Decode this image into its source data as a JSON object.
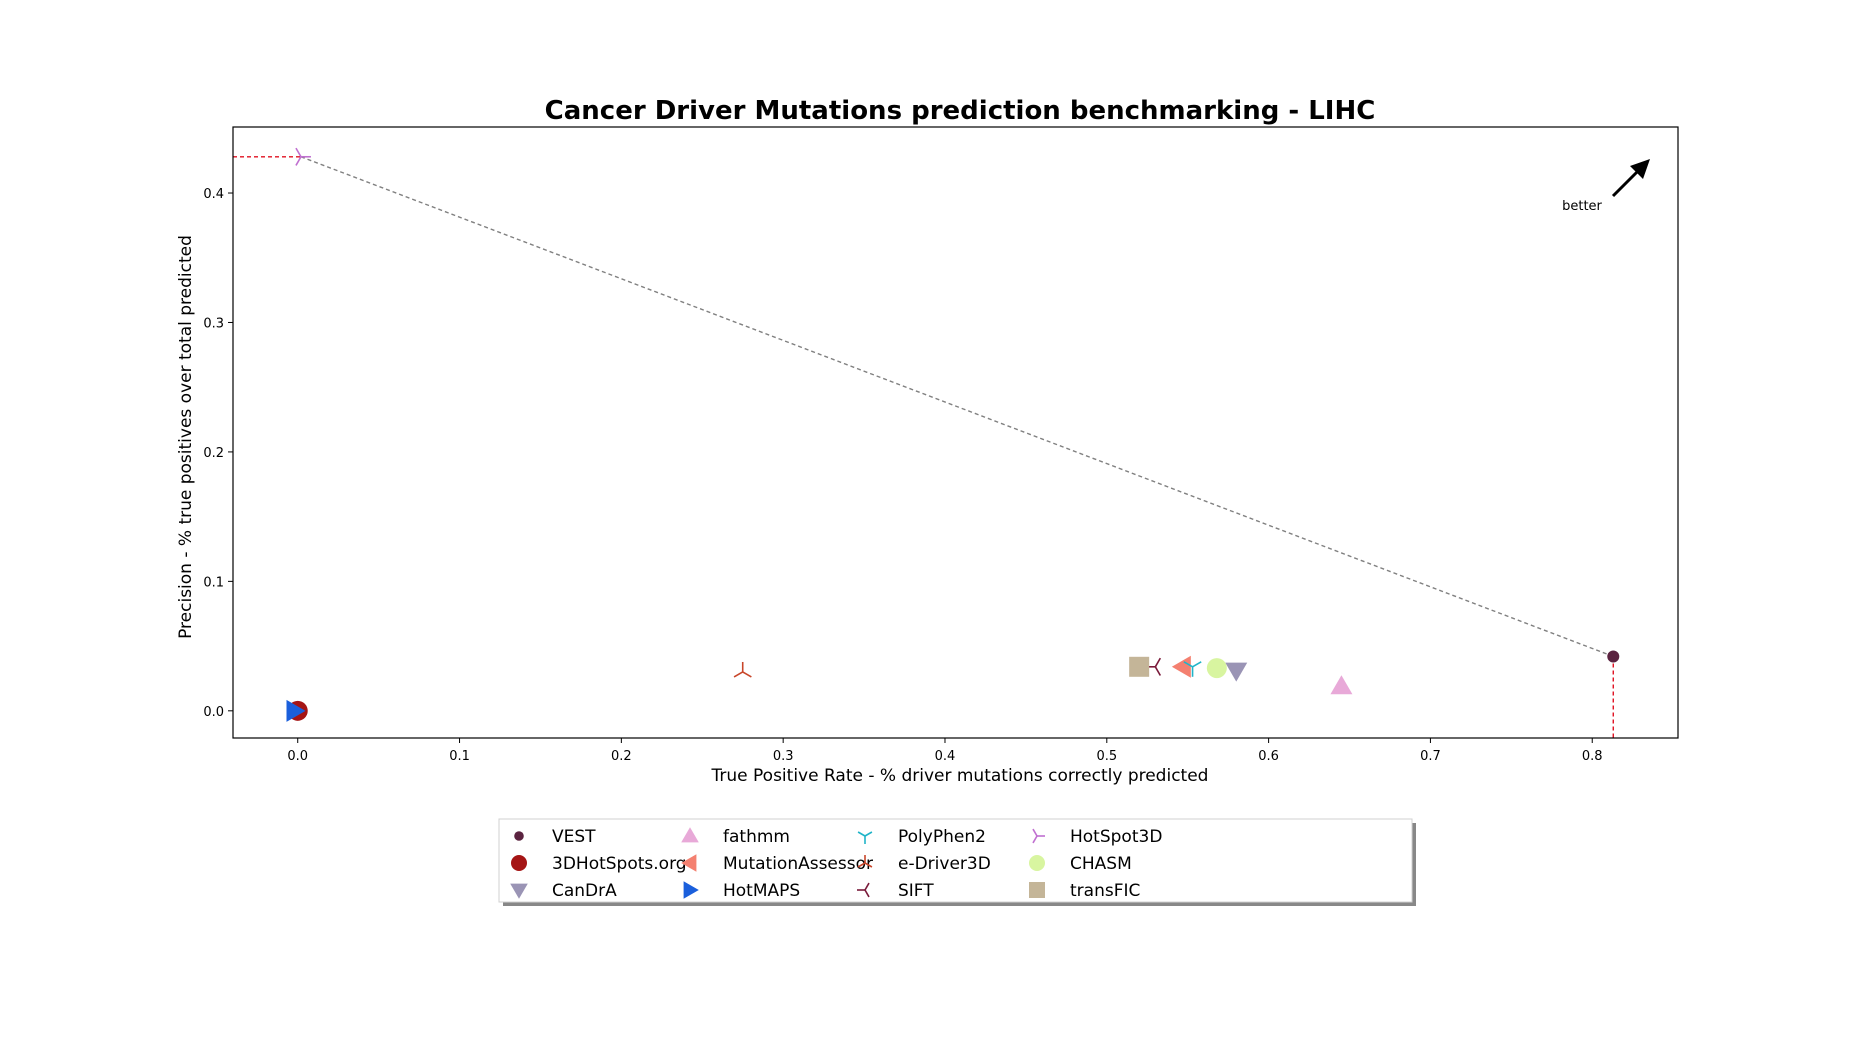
{
  "chart_data": {
    "type": "scatter",
    "title": "Cancer Driver Mutations prediction benchmarking - LIHC",
    "xlabel": "True Positive Rate - % driver mutations correctly predicted",
    "ylabel": "Precision - % true positives over total predicted",
    "xlim": [
      -0.04,
      0.853
    ],
    "ylim": [
      -0.021,
      0.451
    ],
    "xticks": [
      0.0,
      0.1,
      0.2,
      0.3,
      0.4,
      0.5,
      0.6,
      0.7,
      0.8
    ],
    "xtick_labels": [
      "0.0",
      "0.1",
      "0.2",
      "0.3",
      "0.4",
      "0.5",
      "0.6",
      "0.7",
      "0.8"
    ],
    "yticks": [
      0.0,
      0.1,
      0.2,
      0.3,
      0.4
    ],
    "ytick_labels": [
      "0.0",
      "0.1",
      "0.2",
      "0.3",
      "0.4"
    ],
    "grid": false,
    "legend_position": "bottom-center",
    "annotation": "better",
    "pareto_frontier": [
      [
        0.002,
        0.428
      ],
      [
        0.813,
        0.042
      ]
    ],
    "series": [
      {
        "name": "VEST",
        "x": 0.813,
        "y": 0.042,
        "marker": "circle-small",
        "color": "#5b2340"
      },
      {
        "name": "3DHotSpots.org",
        "x": 0.0,
        "y": 0.0,
        "marker": "circle",
        "color": "#a51515"
      },
      {
        "name": "CanDrA",
        "x": 0.58,
        "y": 0.031,
        "marker": "triangle-down",
        "color": "#9a94b5"
      },
      {
        "name": "fathmm",
        "x": 0.645,
        "y": 0.019,
        "marker": "triangle-up",
        "color": "#e8a9d8"
      },
      {
        "name": "MutationAssessor",
        "x": 0.547,
        "y": 0.034,
        "marker": "triangle-left",
        "color": "#f48070"
      },
      {
        "name": "HotMAPS",
        "x": -0.002,
        "y": 0.0,
        "marker": "triangle-right",
        "color": "#1a5fdc"
      },
      {
        "name": "PolyPhen2",
        "x": 0.553,
        "y": 0.034,
        "marker": "tri-down",
        "color": "#20b4c8"
      },
      {
        "name": "e-Driver3D",
        "x": 0.275,
        "y": 0.03,
        "marker": "tri-up",
        "color": "#c8462a"
      },
      {
        "name": "SIFT",
        "x": 0.53,
        "y": 0.034,
        "marker": "tri-left",
        "color": "#7a1a3a"
      },
      {
        "name": "HotSpot3D",
        "x": 0.002,
        "y": 0.428,
        "marker": "tri-right",
        "color": "#c070d0"
      },
      {
        "name": "CHASM",
        "x": 0.568,
        "y": 0.033,
        "marker": "circle",
        "color": "#d8f5a0"
      },
      {
        "name": "transFIC",
        "x": 0.52,
        "y": 0.034,
        "marker": "square",
        "color": "#c4b598"
      }
    ]
  }
}
